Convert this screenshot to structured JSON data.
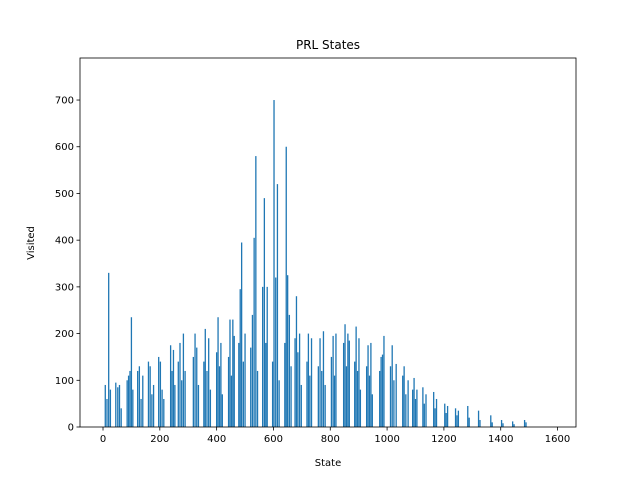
{
  "chart_data": {
    "type": "bar",
    "title": "PRL States",
    "xlabel": "State",
    "ylabel": "Visited",
    "color": "#1f77b4",
    "x": [
      8,
      14,
      20,
      26,
      45,
      52,
      58,
      64,
      85,
      90,
      95,
      100,
      105,
      122,
      128,
      134,
      140,
      160,
      166,
      172,
      178,
      196,
      202,
      208,
      214,
      238,
      243,
      248,
      253,
      265,
      271,
      277,
      283,
      289,
      318,
      324,
      330,
      336,
      355,
      360,
      366,
      372,
      378,
      400,
      405,
      410,
      415,
      420,
      442,
      447,
      452,
      457,
      462,
      478,
      483,
      488,
      494,
      500,
      520,
      526,
      532,
      538,
      544,
      562,
      568,
      573,
      578,
      597,
      602,
      608,
      614,
      620,
      640,
      645,
      650,
      656,
      662,
      676,
      681,
      686,
      692,
      698,
      718,
      723,
      728,
      734,
      758,
      764,
      770,
      776,
      782,
      804,
      810,
      815,
      820,
      847,
      852,
      857,
      862,
      867,
      886,
      891,
      896,
      901,
      906,
      928,
      933,
      938,
      943,
      948,
      974,
      979,
      984,
      989,
      1012,
      1018,
      1024,
      1032,
      1055,
      1060,
      1066,
      1074,
      1090,
      1095,
      1100,
      1105,
      1126,
      1131,
      1137,
      1164,
      1169,
      1174,
      1203,
      1208,
      1213,
      1241,
      1246,
      1251,
      1284,
      1289,
      1322,
      1327,
      1365,
      1370,
      1403,
      1408,
      1442,
      1447,
      1484,
      1489
    ],
    "values": [
      90,
      60,
      330,
      80,
      95,
      85,
      90,
      40,
      100,
      110,
      120,
      235,
      80,
      120,
      130,
      60,
      110,
      140,
      130,
      70,
      90,
      150,
      140,
      80,
      60,
      175,
      120,
      165,
      90,
      140,
      180,
      100,
      200,
      120,
      150,
      200,
      170,
      90,
      140,
      210,
      120,
      190,
      80,
      160,
      235,
      130,
      180,
      70,
      150,
      230,
      110,
      230,
      195,
      180,
      295,
      395,
      140,
      200,
      170,
      240,
      405,
      580,
      120,
      300,
      490,
      180,
      300,
      140,
      700,
      320,
      520,
      100,
      180,
      600,
      325,
      240,
      130,
      190,
      280,
      160,
      200,
      90,
      140,
      200,
      110,
      190,
      130,
      190,
      120,
      205,
      90,
      150,
      195,
      110,
      200,
      180,
      220,
      130,
      200,
      185,
      140,
      215,
      120,
      190,
      80,
      130,
      175,
      110,
      180,
      70,
      120,
      150,
      155,
      195,
      130,
      175,
      100,
      135,
      110,
      130,
      70,
      100,
      80,
      105,
      60,
      80,
      85,
      50,
      70,
      75,
      40,
      60,
      50,
      30,
      45,
      40,
      25,
      35,
      45,
      20,
      35,
      15,
      25,
      10,
      15,
      8,
      12,
      6,
      15,
      10
    ],
    "xlim": [
      -81,
      1665
    ],
    "ylim": [
      0,
      790
    ],
    "xticks": [
      0,
      200,
      400,
      600,
      800,
      1000,
      1200,
      1400,
      1600
    ],
    "yticks": [
      0,
      100,
      200,
      300,
      400,
      500,
      600,
      700
    ]
  }
}
